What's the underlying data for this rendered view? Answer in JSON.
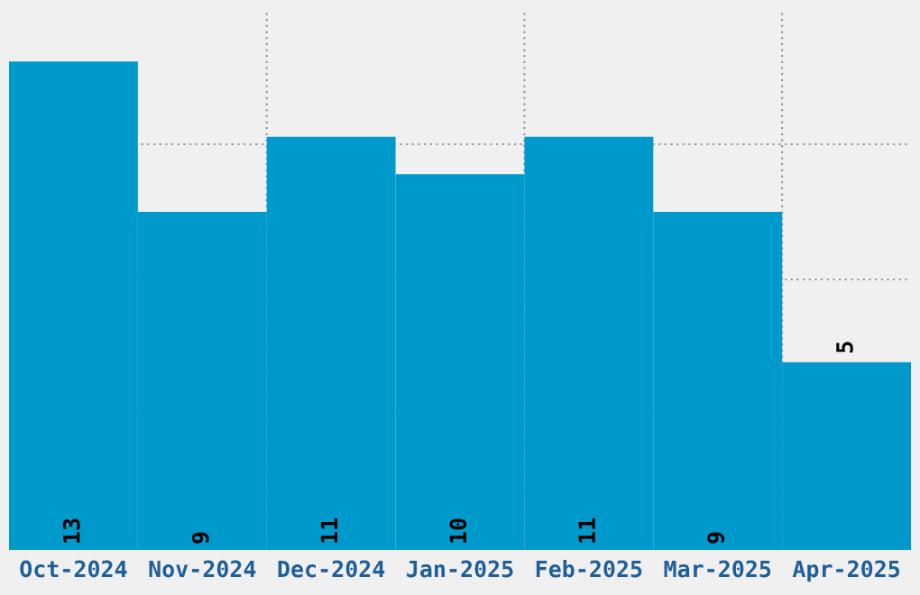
{
  "chart_data": {
    "type": "bar",
    "categories": [
      "Oct-2024",
      "Nov-2024",
      "Dec-2024",
      "Jan-2025",
      "Feb-2025",
      "Mar-2025",
      "Apr-2025"
    ],
    "values": [
      13,
      9,
      11,
      10,
      11,
      9,
      5
    ],
    "color": "#0099cc",
    "ylim": [
      0,
      14.4
    ],
    "yticks": [
      {
        "value": 3.6,
        "label": null
      },
      {
        "value": 7.2,
        "label": null
      },
      {
        "value": 10.8,
        "label": null
      }
    ],
    "tick_labels": "x",
    "grid": true,
    "data_labels": true
  }
}
